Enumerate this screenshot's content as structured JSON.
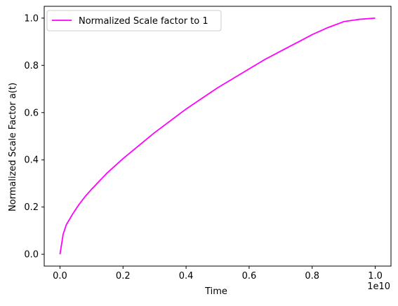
{
  "chart_data": {
    "type": "line",
    "xlabel": "Time",
    "ylabel": "Normalized Scale Factor a(t)",
    "x_offset_text": "1e10",
    "xlim": [
      -0.05,
      1.05
    ],
    "ylim": [
      -0.05,
      1.05
    ],
    "x_scale_factor": 10000000000.0,
    "xticks": [
      0.0,
      0.2,
      0.4,
      0.6,
      0.8,
      1.0
    ],
    "xtick_labels": [
      "0.0",
      "0.2",
      "0.4",
      "0.6",
      "0.8",
      "1.0"
    ],
    "yticks": [
      0.0,
      0.2,
      0.4,
      0.6,
      0.8,
      1.0
    ],
    "ytick_labels": [
      "0.0",
      "0.2",
      "0.4",
      "0.6",
      "0.8",
      "1.0"
    ],
    "grid": false,
    "legend_position": "top-left",
    "series": [
      {
        "name": "Normalized Scale factor to 1",
        "color": "#ff00ff",
        "x": [
          0.0,
          0.01,
          0.02,
          0.04,
          0.06,
          0.08,
          0.1,
          0.15,
          0.2,
          0.25,
          0.3,
          0.35,
          0.4,
          0.45,
          0.5,
          0.55,
          0.6,
          0.65,
          0.7,
          0.75,
          0.8,
          0.85,
          0.9,
          0.95,
          1.0
        ],
        "y": [
          0.0,
          0.085,
          0.125,
          0.17,
          0.21,
          0.245,
          0.275,
          0.345,
          0.405,
          0.46,
          0.515,
          0.565,
          0.615,
          0.66,
          0.705,
          0.745,
          0.785,
          0.825,
          0.86,
          0.895,
          0.93,
          0.96,
          0.985,
          0.995,
          1.0
        ]
      }
    ]
  }
}
